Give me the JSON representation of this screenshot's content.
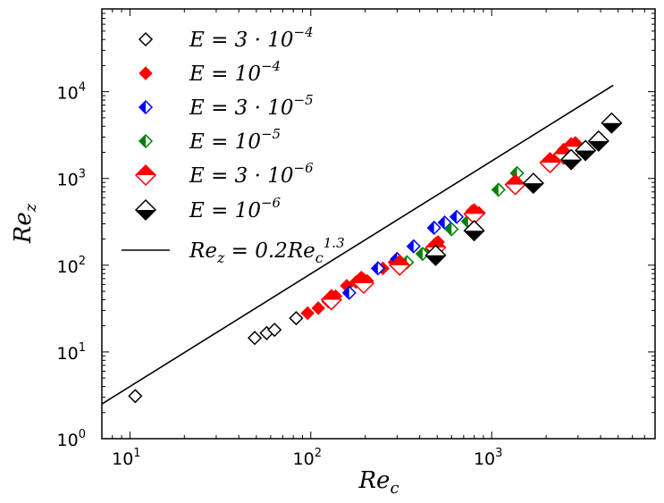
{
  "chart_data": {
    "type": "scatter",
    "xscale": "log",
    "yscale": "log",
    "xlim": [
      7,
      8000
    ],
    "ylim": [
      1,
      90000
    ],
    "xlabel": {
      "base": "Re",
      "sub": "c"
    },
    "ylabel": {
      "base": "Re",
      "sub": "z"
    },
    "xticks": [
      {
        "value": 10,
        "label": "10",
        "exp": "1"
      },
      {
        "value": 100,
        "label": "10",
        "exp": "2"
      },
      {
        "value": 1000,
        "label": "10",
        "exp": "3"
      }
    ],
    "yticks": [
      {
        "value": 1,
        "label": "10",
        "exp": "0"
      },
      {
        "value": 10,
        "label": "10",
        "exp": "1"
      },
      {
        "value": 100,
        "label": "10",
        "exp": "2"
      },
      {
        "value": 1000,
        "label": "10",
        "exp": "3"
      },
      {
        "value": 10000,
        "label": "10",
        "exp": "4"
      }
    ],
    "series": [
      {
        "name": "E = 3·10^-4",
        "legend": {
          "prefix": "E = 3 · 10",
          "exp": "−4"
        },
        "color": "#000000",
        "style": "open",
        "size": 7,
        "points": [
          [
            10.7,
            3.1
          ],
          [
            49,
            14.5
          ],
          [
            57,
            16.5
          ],
          [
            63,
            18
          ],
          [
            83,
            24.5
          ]
        ]
      },
      {
        "name": "E = 10^-4",
        "legend": {
          "prefix": "E = 10",
          "exp": "−4"
        },
        "color": "#ff0000",
        "style": "filled",
        "size": 7,
        "points": [
          [
            96,
            28
          ],
          [
            110,
            32
          ],
          [
            125,
            38
          ],
          [
            137,
            44
          ],
          [
            158,
            58
          ],
          [
            178,
            64
          ],
          [
            190,
            72
          ],
          [
            205,
            66
          ],
          [
            250,
            92
          ],
          [
            290,
            108
          ],
          [
            480,
            170
          ],
          [
            505,
            185
          ],
          [
            780,
            420
          ],
          [
            850,
            400
          ],
          [
            2050,
            1600
          ],
          [
            2300,
            1750
          ],
          [
            2500,
            2150
          ],
          [
            2750,
            2500
          ]
        ]
      },
      {
        "name": "E = 3·10^-5",
        "legend": {
          "prefix": "E = 3 · 10",
          "exp": "−5"
        },
        "color": "#0000ff",
        "style": "half-left",
        "size": 7,
        "points": [
          [
            163,
            48
          ],
          [
            235,
            92
          ],
          [
            300,
            118
          ],
          [
            370,
            165
          ],
          [
            480,
            270
          ],
          [
            550,
            310
          ],
          [
            640,
            360
          ]
        ]
      },
      {
        "name": "E = 10^-5",
        "legend": {
          "prefix": "E = 10",
          "exp": "−5"
        },
        "color": "#008000",
        "style": "half-left",
        "size": 7,
        "points": [
          [
            340,
            108
          ],
          [
            415,
            135
          ],
          [
            460,
            150
          ],
          [
            600,
            260
          ],
          [
            740,
            320
          ],
          [
            1090,
            740
          ],
          [
            1380,
            1150
          ]
        ]
      },
      {
        "name": "E = 3·10^-6",
        "legend": {
          "prefix": "E = 3 · 10",
          "exp": "−6"
        },
        "color": "#ff0000",
        "style": "half-top",
        "size": 11,
        "points": [
          [
            130,
            40
          ],
          [
            196,
            62
          ],
          [
            310,
            100
          ],
          [
            490,
            160
          ],
          [
            800,
            390
          ],
          [
            1350,
            850
          ],
          [
            2100,
            1520
          ],
          [
            2500,
            1900
          ],
          [
            2900,
            2320
          ]
        ]
      },
      {
        "name": "E = 10^-6",
        "legend": {
          "prefix": "E = 10",
          "exp": "−6"
        },
        "color": "#000000",
        "style": "half-bottom",
        "size": 11,
        "points": [
          [
            490,
            130
          ],
          [
            800,
            250
          ],
          [
            1700,
            880
          ],
          [
            2750,
            1650
          ],
          [
            3300,
            2100
          ],
          [
            3900,
            2700
          ],
          [
            4600,
            4350
          ]
        ]
      }
    ],
    "fit_line": {
      "name": "Re_z = 0.2 Re_c^1.3",
      "legend": {
        "lhs": "Re",
        "lhs_sub": "z",
        "eq": " = 0.2",
        "rhs": "Re",
        "rhs_sub": "c",
        "exp": "1.3"
      },
      "coef": 0.2,
      "power": 1.3,
      "x_range": [
        7,
        4700
      ],
      "color": "#000000"
    }
  }
}
